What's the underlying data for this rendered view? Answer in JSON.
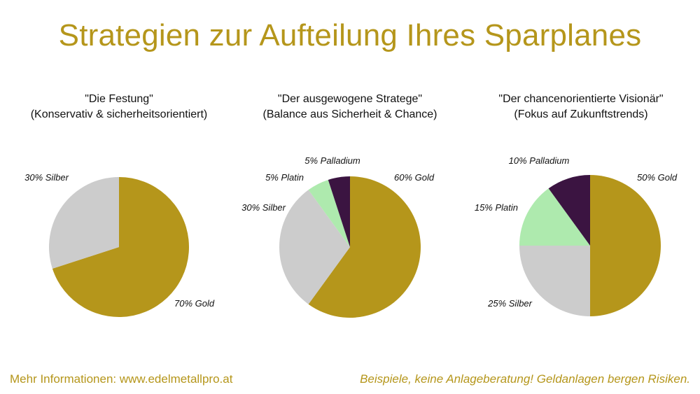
{
  "title": "Strategien zur Aufteilung Ihres Sparplanes",
  "colors": {
    "title": "#b5961b",
    "Gold": "#b5961b",
    "Silber": "#cccccc",
    "Platin": "#aeeaae",
    "Palladium": "#3b1441"
  },
  "chart_data": [
    {
      "type": "pie",
      "title_line1": "\"Die Festung\"",
      "title_line2": "(Konservativ & sicherheitsorientiert)",
      "slices": [
        {
          "name": "Gold",
          "value": 70,
          "label": "70% Gold"
        },
        {
          "name": "Silber",
          "value": 30,
          "label": "30% Silber"
        }
      ]
    },
    {
      "type": "pie",
      "title_line1": "\"Der ausgewogene Stratege\"",
      "title_line2": "(Balance aus Sicherheit & Chance)",
      "slices": [
        {
          "name": "Gold",
          "value": 60,
          "label": "60% Gold"
        },
        {
          "name": "Silber",
          "value": 30,
          "label": "30% Silber"
        },
        {
          "name": "Platin",
          "value": 5,
          "label": "5% Platin"
        },
        {
          "name": "Palladium",
          "value": 5,
          "label": "5% Palladium"
        }
      ]
    },
    {
      "type": "pie",
      "title_line1": "\"Der chancenorientierte Visionär\"",
      "title_line2": "(Fokus auf Zukunftstrends)",
      "slices": [
        {
          "name": "Gold",
          "value": 50,
          "label": "50% Gold"
        },
        {
          "name": "Silber",
          "value": 25,
          "label": "25% Silber"
        },
        {
          "name": "Platin",
          "value": 15,
          "label": "15% Platin"
        },
        {
          "name": "Palladium",
          "value": 10,
          "label": "10% Palladium"
        }
      ]
    }
  ],
  "footer": {
    "left": "Mehr Informationen: www.edelmetallpro.at",
    "right": "Beispiele, keine Anlageberatung! Geldanlagen bergen Risiken."
  }
}
